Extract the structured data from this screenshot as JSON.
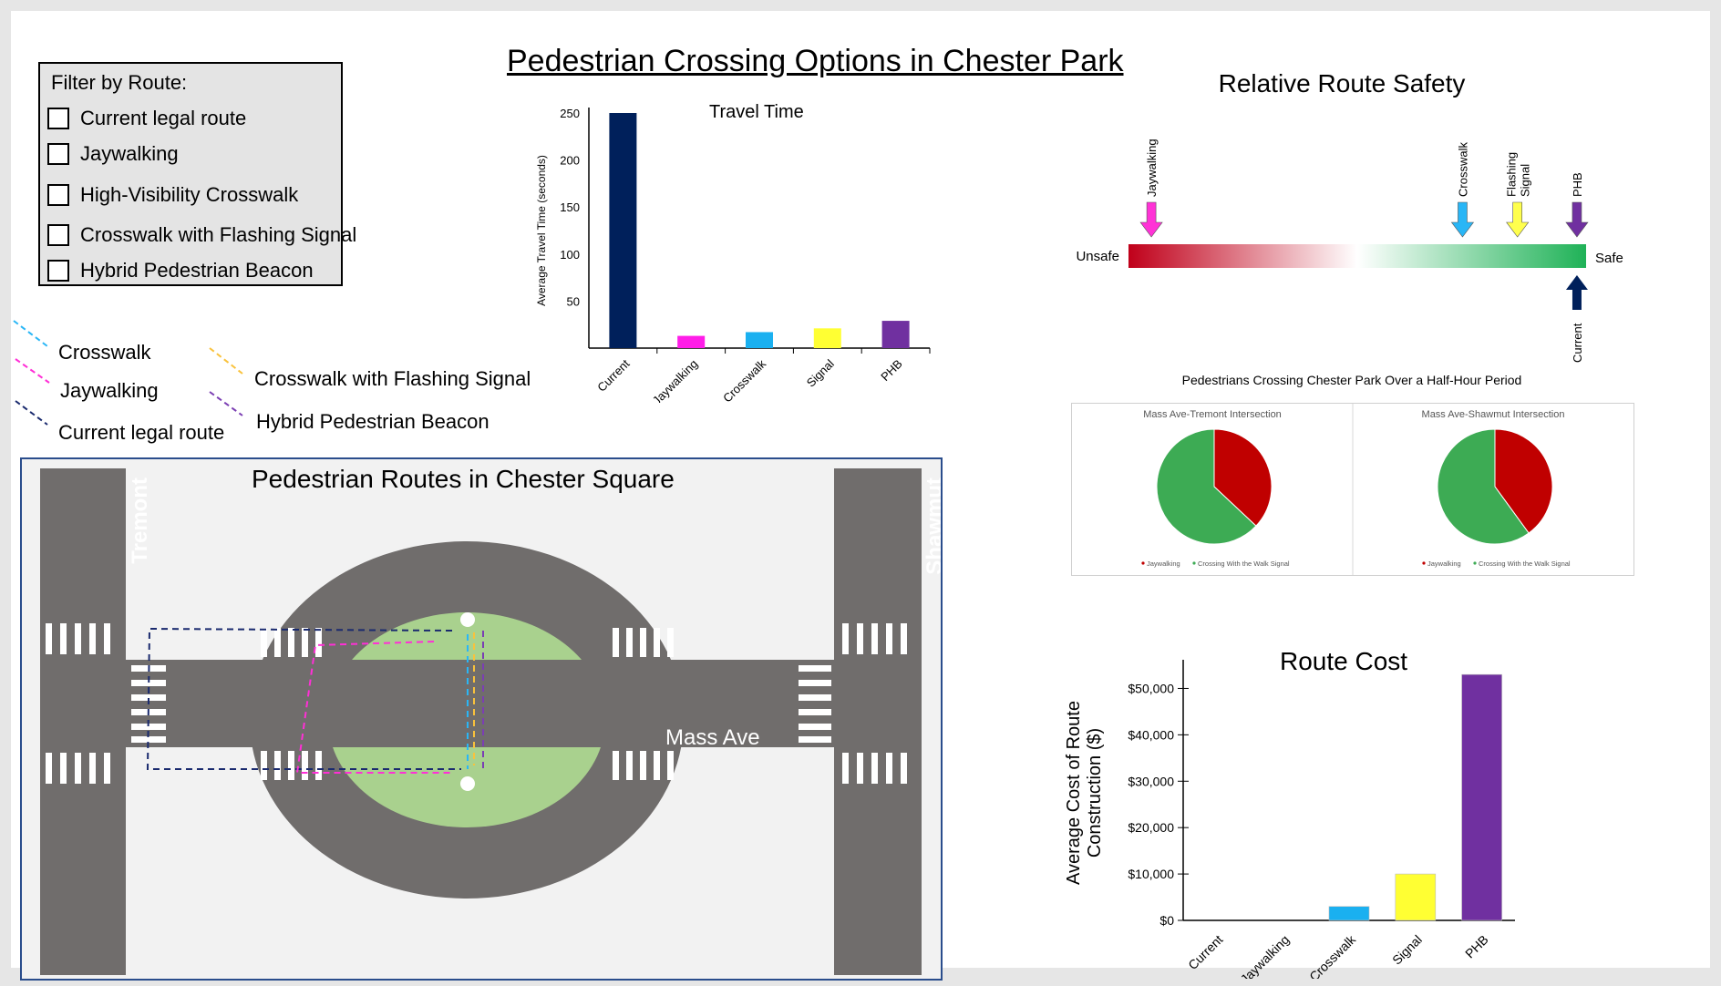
{
  "main_title": "Pedestrian Crossing Options in Chester Park",
  "filter": {
    "title": "Filter by Route:",
    "options": [
      "Current legal route",
      "Jaywalking",
      "High-Visibility Crosswalk",
      "Crosswalk with Flashing Signal",
      "Hybrid Pedestrian Beacon"
    ]
  },
  "legend": [
    {
      "label": "Crosswalk",
      "color": "#29b6f6"
    },
    {
      "label": "Jaywalking",
      "color": "#ff2fd6"
    },
    {
      "label": "Current legal route",
      "color": "#1a2a6e"
    },
    {
      "label": "Crosswalk with Flashing Signal",
      "color": "#f9c23c"
    },
    {
      "label": "Hybrid Pedestrian Beacon",
      "color": "#7b3fb3"
    }
  ],
  "travel_time": {
    "chart_data": {
      "type": "bar",
      "title": "Travel Time",
      "ylabel": "Average Travel Time (seconds)",
      "categories": [
        "Current",
        "Jaywalking",
        "Crosswalk",
        "Signal",
        "PHB"
      ],
      "values": [
        250,
        13,
        17,
        21,
        29
      ],
      "colors": [
        "#00205b",
        "#ff1de8",
        "#1ab0f0",
        "#ffff33",
        "#7030a0"
      ],
      "ylim": [
        0,
        250
      ],
      "yticks": [
        "50",
        "100",
        "150",
        "200",
        "250"
      ]
    }
  },
  "safety": {
    "title": "Relative Route Safety",
    "left_label": "Unsafe",
    "right_label": "Safe",
    "markers_top": [
      {
        "label": "Jaywalking",
        "position": 0.05,
        "color": "#ff33d6"
      },
      {
        "label": "Crosswalk",
        "position": 0.73,
        "color": "#29b6f6"
      },
      {
        "label": "Flashing Signal",
        "position": 0.85,
        "color": "#ffff4d"
      },
      {
        "label": "PHB",
        "position": 0.98,
        "color": "#7030a0"
      }
    ],
    "marker_bottom": {
      "label": "Current",
      "position": 0.98,
      "color": "#00205b"
    }
  },
  "pies": {
    "title": "Pedestrians Crossing Chester Park Over a Half-Hour Period",
    "chart_data": [
      {
        "type": "pie",
        "title": "Mass Ave-Tremont Intersection",
        "labels": [
          "Jaywalking",
          "Crossing With the Walk Signal"
        ],
        "values": [
          37,
          63
        ],
        "colors": [
          "#c00000",
          "#3dab54"
        ]
      },
      {
        "type": "pie",
        "title": "Mass Ave-Shawmut Intersection",
        "labels": [
          "Jaywalking",
          "Crossing With the Walk Signal"
        ],
        "values": [
          40,
          60
        ],
        "colors": [
          "#c00000",
          "#3dab54"
        ]
      }
    ],
    "legend_jay": "Jaywalking",
    "legend_walk": "Crossing With the Walk Signal"
  },
  "route_cost": {
    "chart_data": {
      "type": "bar",
      "title": "Route Cost",
      "ylabel_line1": "Average Cost of Route",
      "ylabel_line2": "Construction ($)",
      "categories": [
        "Current",
        "Jaywalking",
        "Crosswalk",
        "Signal",
        "PHB"
      ],
      "values": [
        0,
        0,
        3000,
        10000,
        53000
      ],
      "colors": [
        "#00205b",
        "#ff1de8",
        "#1ab0f0",
        "#ffff33",
        "#7030a0"
      ],
      "ylim": [
        0,
        55000
      ],
      "ytick_values": [
        0,
        10000,
        20000,
        30000,
        40000,
        50000
      ],
      "ytick_labels": [
        "$0",
        "$10,000",
        "$20,000",
        "$30,000",
        "$40,000",
        "$50,000"
      ]
    }
  },
  "map": {
    "title": "Pedestrian Routes in Chester Square",
    "street_left": "Tremont",
    "street_right": "Shawmut",
    "street_center": "Mass Ave"
  }
}
